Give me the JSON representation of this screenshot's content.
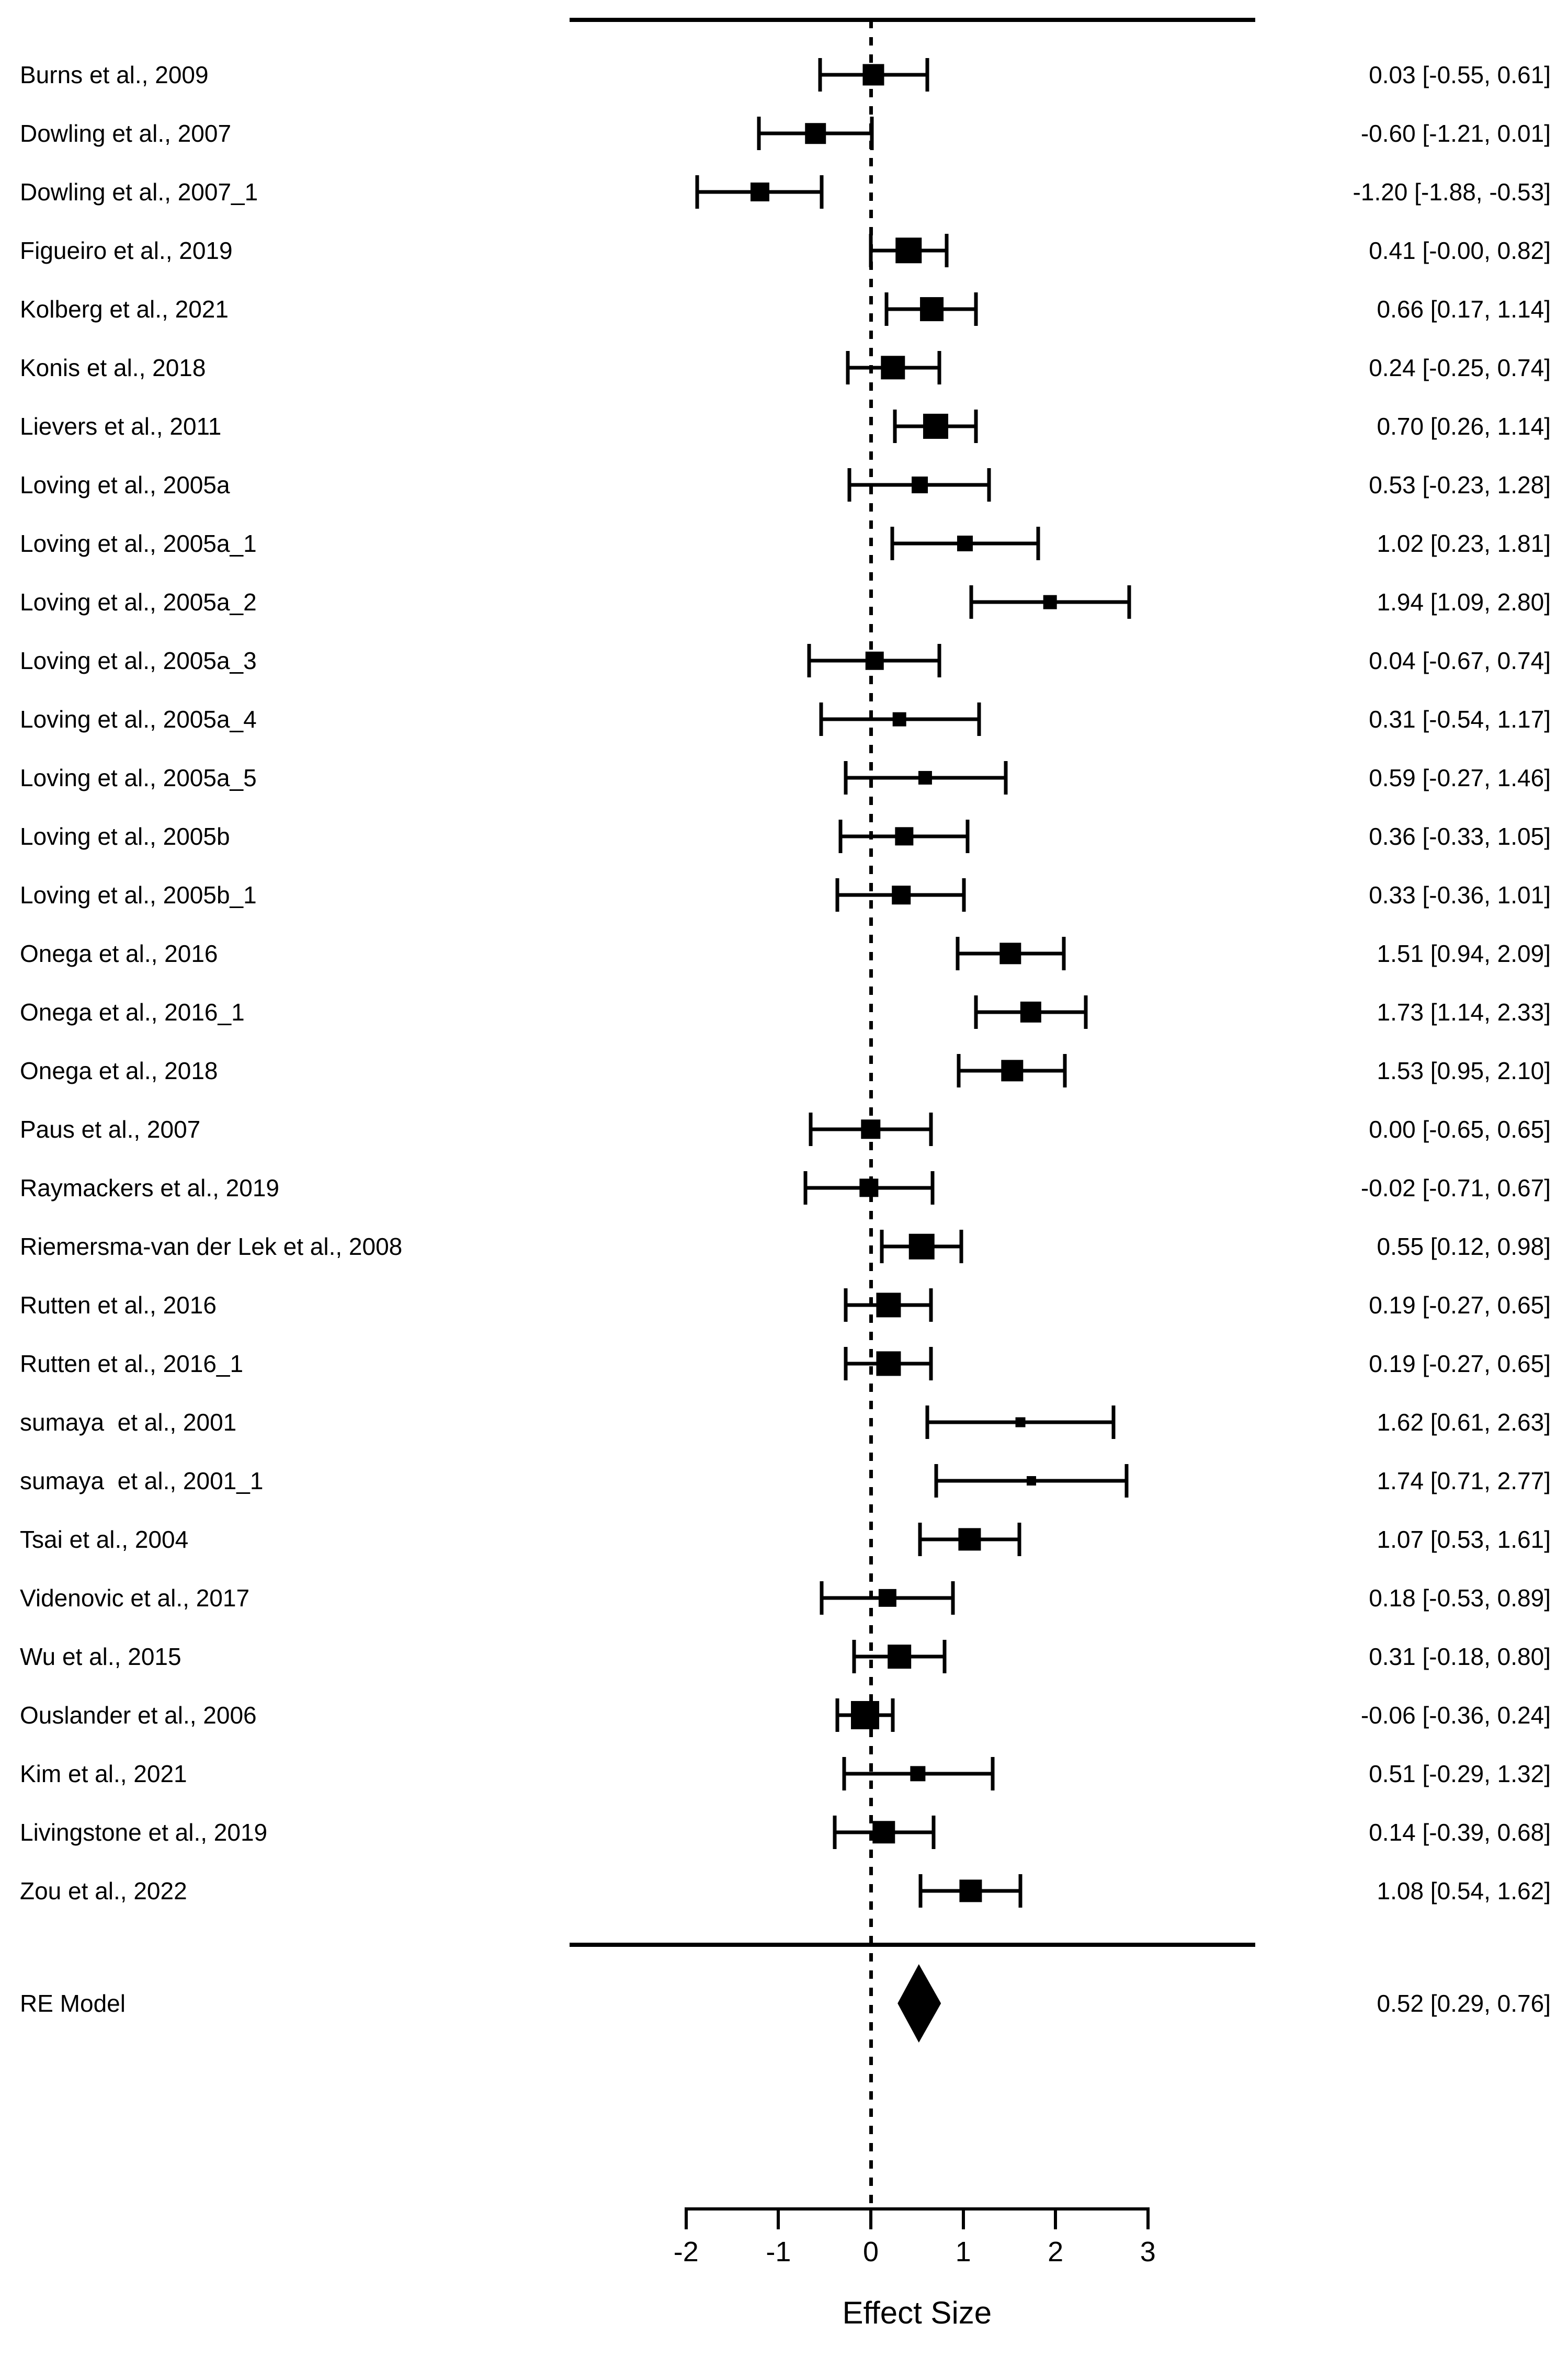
{
  "chart_data": {
    "type": "scatter",
    "subtype": "forest-plot",
    "title": "",
    "xlabel": "Effect Size",
    "ylabel": "",
    "xlim": [
      -2,
      3
    ],
    "x_ticks": [
      -2,
      -1,
      0,
      1,
      2,
      3
    ],
    "x_tick_labels": [
      "-2",
      "-1",
      "0",
      "1",
      "2",
      "3"
    ],
    "zero_reference_line": 0,
    "grid": false,
    "marker_color": "#000000",
    "studies": [
      {
        "label": "Burns et al., 2009",
        "est": 0.03,
        "lo": -0.55,
        "hi": 0.61,
        "display": "0.03 [-0.55, 0.61]"
      },
      {
        "label": "Dowling et al., 2007",
        "est": -0.6,
        "lo": -1.21,
        "hi": 0.01,
        "display": "-0.60 [-1.21, 0.01]"
      },
      {
        "label": "Dowling et al., 2007_1",
        "est": -1.2,
        "lo": -1.88,
        "hi": -0.53,
        "display": "-1.20 [-1.88, -0.53]"
      },
      {
        "label": "Figueiro et al., 2019",
        "est": 0.41,
        "lo": -0.0,
        "hi": 0.82,
        "display": "0.41 [-0.00, 0.82]"
      },
      {
        "label": "Kolberg et al., 2021",
        "est": 0.66,
        "lo": 0.17,
        "hi": 1.14,
        "display": "0.66 [0.17, 1.14]"
      },
      {
        "label": "Konis et al., 2018",
        "est": 0.24,
        "lo": -0.25,
        "hi": 0.74,
        "display": "0.24 [-0.25, 0.74]"
      },
      {
        "label": "Lievers et al., 2011",
        "est": 0.7,
        "lo": 0.26,
        "hi": 1.14,
        "display": "0.70 [0.26, 1.14]"
      },
      {
        "label": "Loving et al., 2005a",
        "est": 0.53,
        "lo": -0.23,
        "hi": 1.28,
        "display": "0.53 [-0.23, 1.28]"
      },
      {
        "label": "Loving et al., 2005a_1",
        "est": 1.02,
        "lo": 0.23,
        "hi": 1.81,
        "display": "1.02 [0.23, 1.81]"
      },
      {
        "label": "Loving et al., 2005a_2",
        "est": 1.94,
        "lo": 1.09,
        "hi": 2.8,
        "display": "1.94 [1.09, 2.80]"
      },
      {
        "label": "Loving et al., 2005a_3",
        "est": 0.04,
        "lo": -0.67,
        "hi": 0.74,
        "display": "0.04 [-0.67, 0.74]"
      },
      {
        "label": "Loving et al., 2005a_4",
        "est": 0.31,
        "lo": -0.54,
        "hi": 1.17,
        "display": "0.31 [-0.54, 1.17]"
      },
      {
        "label": "Loving et al., 2005a_5",
        "est": 0.59,
        "lo": -0.27,
        "hi": 1.46,
        "display": "0.59 [-0.27, 1.46]"
      },
      {
        "label": "Loving et al., 2005b",
        "est": 0.36,
        "lo": -0.33,
        "hi": 1.05,
        "display": "0.36 [-0.33, 1.05]"
      },
      {
        "label": "Loving et al., 2005b_1",
        "est": 0.33,
        "lo": -0.36,
        "hi": 1.01,
        "display": "0.33 [-0.36, 1.01]"
      },
      {
        "label": "Onega et al., 2016",
        "est": 1.51,
        "lo": 0.94,
        "hi": 2.09,
        "display": "1.51 [0.94, 2.09]"
      },
      {
        "label": "Onega et al., 2016_1",
        "est": 1.73,
        "lo": 1.14,
        "hi": 2.33,
        "display": "1.73 [1.14, 2.33]"
      },
      {
        "label": "Onega et al., 2018",
        "est": 1.53,
        "lo": 0.95,
        "hi": 2.1,
        "display": "1.53 [0.95, 2.10]"
      },
      {
        "label": "Paus et al., 2007",
        "est": 0.0,
        "lo": -0.65,
        "hi": 0.65,
        "display": "0.00 [-0.65, 0.65]"
      },
      {
        "label": "Raymackers et al., 2019",
        "est": -0.02,
        "lo": -0.71,
        "hi": 0.67,
        "display": "-0.02 [-0.71, 0.67]"
      },
      {
        "label": "Riemersma-van der Lek et al., 2008",
        "est": 0.55,
        "lo": 0.12,
        "hi": 0.98,
        "display": "0.55 [0.12, 0.98]"
      },
      {
        "label": "Rutten et al., 2016",
        "est": 0.19,
        "lo": -0.27,
        "hi": 0.65,
        "display": "0.19 [-0.27, 0.65]"
      },
      {
        "label": "Rutten et al., 2016_1",
        "est": 0.19,
        "lo": -0.27,
        "hi": 0.65,
        "display": "0.19 [-0.27, 0.65]"
      },
      {
        "label": "sumaya  et al., 2001",
        "est": 1.62,
        "lo": 0.61,
        "hi": 2.63,
        "display": "1.62 [0.61, 2.63]"
      },
      {
        "label": "sumaya  et al., 2001_1",
        "est": 1.74,
        "lo": 0.71,
        "hi": 2.77,
        "display": "1.74 [0.71, 2.77]"
      },
      {
        "label": "Tsai et al., 2004",
        "est": 1.07,
        "lo": 0.53,
        "hi": 1.61,
        "display": "1.07 [0.53, 1.61]"
      },
      {
        "label": "Videnovic et al., 2017",
        "est": 0.18,
        "lo": -0.53,
        "hi": 0.89,
        "display": "0.18 [-0.53, 0.89]"
      },
      {
        "label": "Wu et al., 2015",
        "est": 0.31,
        "lo": -0.18,
        "hi": 0.8,
        "display": "0.31 [-0.18, 0.80]"
      },
      {
        "label": "Ouslander et al., 2006",
        "est": -0.06,
        "lo": -0.36,
        "hi": 0.24,
        "display": "-0.06 [-0.36, 0.24]"
      },
      {
        "label": "Kim et al., 2021",
        "est": 0.51,
        "lo": -0.29,
        "hi": 1.32,
        "display": "0.51 [-0.29, 1.32]"
      },
      {
        "label": "Livingstone et al., 2019",
        "est": 0.14,
        "lo": -0.39,
        "hi": 0.68,
        "display": "0.14 [-0.39, 0.68]"
      },
      {
        "label": "Zou et al., 2022",
        "est": 1.08,
        "lo": 0.54,
        "hi": 1.62,
        "display": "1.08 [0.54, 1.62]"
      }
    ],
    "summary": {
      "label": "RE Model",
      "est": 0.52,
      "lo": 0.29,
      "hi": 0.76,
      "display": "0.52 [0.29, 0.76]"
    }
  },
  "colors": {
    "foreground": "#000000",
    "background": "#ffffff"
  }
}
